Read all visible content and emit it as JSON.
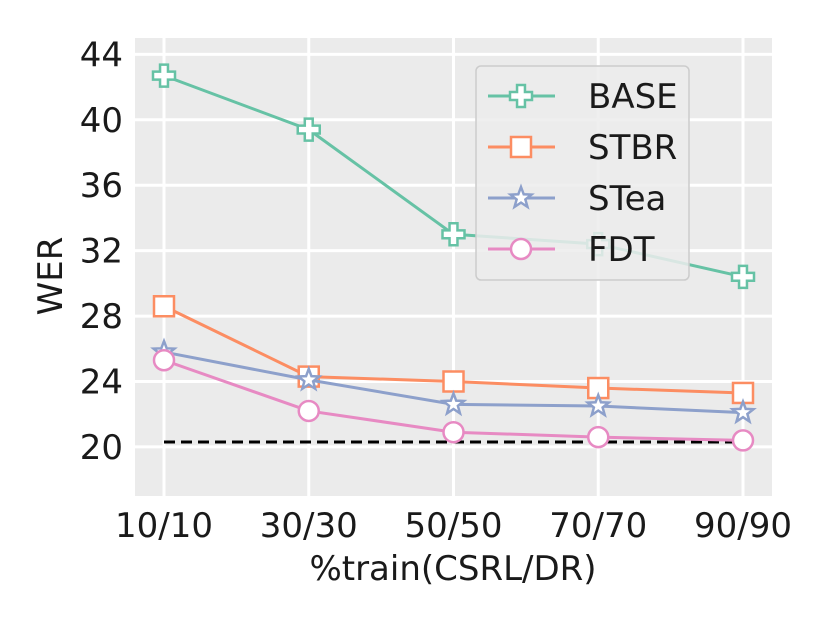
{
  "chart_data": {
    "type": "line",
    "title": "",
    "xlabel": "%train(CSRL/DR)",
    "ylabel": "WER",
    "categories": [
      "10/10",
      "30/30",
      "50/50",
      "70/70",
      "90/90"
    ],
    "ylim": [
      17,
      45
    ],
    "yticks": [
      20,
      24,
      28,
      32,
      36,
      40,
      44
    ],
    "grid": true,
    "legend_position": "top-right",
    "series": [
      {
        "name": "BASE",
        "values": [
          42.7,
          39.4,
          33.0,
          32.4,
          30.4
        ],
        "color": "#66c2a5",
        "marker": "plus"
      },
      {
        "name": "STBR",
        "values": [
          28.6,
          24.3,
          24.0,
          23.6,
          23.3
        ],
        "color": "#fc8d62",
        "marker": "square"
      },
      {
        "name": "STea",
        "values": [
          25.8,
          24.1,
          22.6,
          22.5,
          22.1
        ],
        "color": "#8da0cb",
        "marker": "star"
      },
      {
        "name": "FDT",
        "values": [
          25.3,
          22.2,
          20.9,
          20.6,
          20.4
        ],
        "color": "#e78ac3",
        "marker": "circle"
      }
    ],
    "reference_line": {
      "value": 20.3,
      "style": "dashed",
      "color": "#000000"
    }
  }
}
